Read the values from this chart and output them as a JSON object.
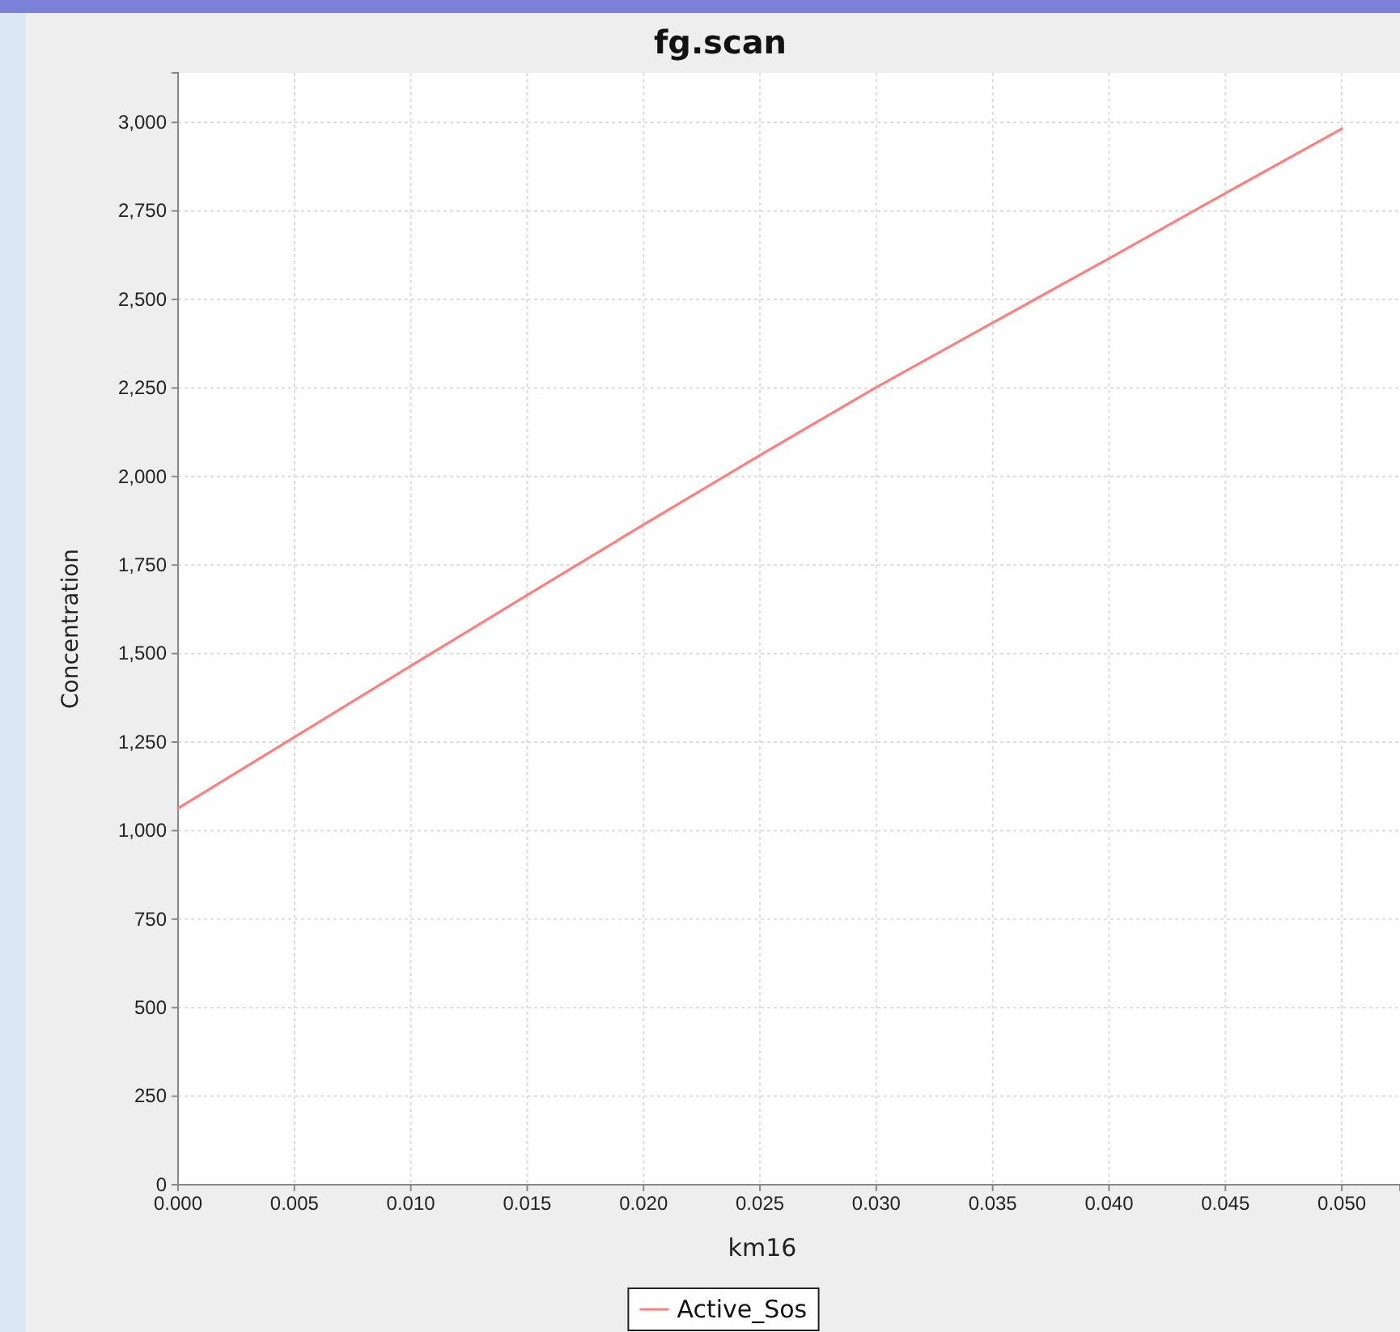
{
  "chart_data": {
    "type": "line",
    "title": "fg.scan",
    "xlabel": "km16",
    "ylabel": "Concentration",
    "x": [
      0,
      0.005,
      0.01,
      0.015,
      0.02,
      0.025,
      0.03,
      0.035,
      0.04,
      0.045,
      0.05
    ],
    "series": [
      {
        "name": "Active_Sos",
        "color": "#ff8080",
        "values": [
          1063,
          1264,
          1465,
          1665,
          1864,
          2060,
          2252,
          2434,
          2616,
          2800,
          2982
        ]
      }
    ],
    "xlim": [
      0,
      0.0525
    ],
    "ylim": [
      0,
      3140
    ],
    "xticks": [
      {
        "value": 0,
        "label": "0.000"
      },
      {
        "value": 0.005,
        "label": "0.005"
      },
      {
        "value": 0.01,
        "label": "0.010"
      },
      {
        "value": 0.015,
        "label": "0.015"
      },
      {
        "value": 0.02,
        "label": "0.020"
      },
      {
        "value": 0.025,
        "label": "0.025"
      },
      {
        "value": 0.03,
        "label": "0.030"
      },
      {
        "value": 0.035,
        "label": "0.035"
      },
      {
        "value": 0.04,
        "label": "0.040"
      },
      {
        "value": 0.045,
        "label": "0.045"
      },
      {
        "value": 0.05,
        "label": "0.050"
      }
    ],
    "yticks": [
      0,
      250,
      500,
      750,
      {
        "value": 1000,
        "label": "1,000"
      },
      {
        "value": 1250,
        "label": "1,250"
      },
      {
        "value": 1500,
        "label": "1,500"
      },
      {
        "value": 1750,
        "label": "1,750"
      },
      {
        "value": 2000,
        "label": "2,000"
      },
      {
        "value": 2250,
        "label": "2,250"
      },
      {
        "value": 2500,
        "label": "2,500"
      },
      {
        "value": 2750,
        "label": "2,750"
      },
      {
        "value": 3000,
        "label": "3,000"
      }
    ],
    "grid": true,
    "legend": "bottom",
    "marker": "none",
    "line_style": "solid"
  }
}
